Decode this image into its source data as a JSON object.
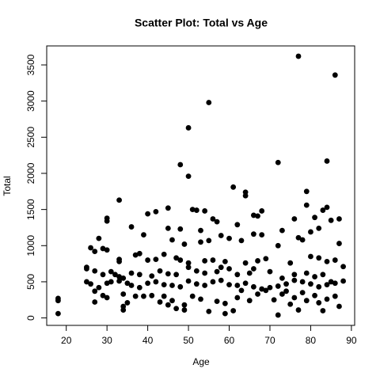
{
  "chart_data": {
    "type": "scatter",
    "title": "Scatter Plot: Total vs Age",
    "x_label": "Age",
    "y_label": "Total",
    "color": "#000000",
    "xlim": [
      15.2,
      90.8
    ],
    "ylim": [
      -103,
      3763
    ],
    "xticks": [
      20,
      30,
      40,
      50,
      60,
      70,
      80,
      90
    ],
    "yticks": [
      0,
      500,
      1000,
      1500,
      2000,
      2500,
      3000,
      3500
    ],
    "x": [
      77,
      86,
      55,
      50,
      84,
      72,
      48,
      50,
      61,
      79,
      64,
      64,
      33,
      79,
      45,
      51,
      52,
      54,
      83,
      84,
      68,
      42,
      40,
      66,
      67,
      30,
      30,
      56,
      57,
      85,
      87,
      76,
      81,
      62,
      36,
      45,
      48,
      73,
      53,
      80,
      82,
      58,
      68,
      66,
      39,
      28,
      77,
      78,
      60,
      55,
      63,
      53,
      46,
      72,
      49,
      87,
      26,
      29,
      30,
      27,
      33,
      33,
      37,
      38,
      44,
      47,
      40,
      42,
      48,
      50,
      54,
      56,
      59,
      64,
      67,
      69,
      75,
      80,
      82,
      84,
      86,
      88,
      25,
      25,
      27,
      29,
      31,
      32,
      33,
      34,
      36,
      38,
      41,
      43,
      45,
      47,
      50,
      52,
      54,
      57,
      58,
      60,
      62,
      65,
      66,
      70,
      73,
      76,
      79,
      81,
      83,
      85,
      25,
      26,
      28,
      30,
      31,
      33,
      35,
      36,
      38,
      40,
      42,
      44,
      46,
      48,
      50,
      52,
      54,
      56,
      58,
      60,
      62,
      64,
      66,
      68,
      70,
      72,
      74,
      76,
      78,
      80,
      82,
      84,
      86,
      88,
      18,
      18,
      18,
      27,
      27,
      29,
      30,
      34,
      34,
      35,
      34,
      37,
      39,
      41,
      43,
      44,
      45,
      46,
      47,
      49,
      49,
      51,
      53,
      55,
      57,
      59,
      59,
      61,
      62,
      63,
      65,
      67,
      69,
      71,
      72,
      73,
      74,
      75,
      76,
      77,
      78,
      79,
      81,
      82,
      83,
      84,
      86,
      87
    ],
    "y": [
      3620,
      3360,
      2980,
      2630,
      2170,
      2150,
      2120,
      1960,
      1810,
      1750,
      1740,
      1690,
      1630,
      1560,
      1520,
      1500,
      1490,
      1480,
      1490,
      1530,
      1480,
      1470,
      1440,
      1420,
      1410,
      1380,
      1340,
      1370,
      1330,
      1350,
      1370,
      1370,
      1390,
      1290,
      1260,
      1240,
      1230,
      1210,
      1210,
      1190,
      1240,
      1140,
      1150,
      1160,
      1150,
      1100,
      1110,
      1080,
      1100,
      1070,
      1070,
      1050,
      1080,
      1000,
      1020,
      1030,
      970,
      960,
      940,
      920,
      810,
      780,
      870,
      890,
      880,
      830,
      800,
      810,
      800,
      760,
      790,
      800,
      780,
      760,
      790,
      820,
      760,
      850,
      830,
      780,
      800,
      710,
      700,
      680,
      650,
      600,
      640,
      600,
      570,
      550,
      620,
      600,
      580,
      650,
      610,
      600,
      700,
      650,
      620,
      640,
      700,
      680,
      600,
      620,
      680,
      640,
      550,
      600,
      620,
      570,
      600,
      500,
      500,
      470,
      420,
      480,
      500,
      510,
      480,
      450,
      420,
      480,
      500,
      460,
      450,
      430,
      510,
      470,
      450,
      500,
      520,
      460,
      450,
      480,
      430,
      400,
      420,
      440,
      470,
      520,
      500,
      470,
      430,
      460,
      480,
      510,
      270,
      240,
      60,
      370,
      220,
      310,
      280,
      330,
      160,
      210,
      110,
      300,
      300,
      310,
      220,
      300,
      180,
      240,
      130,
      180,
      110,
      300,
      260,
      90,
      230,
      200,
      60,
      100,
      280,
      380,
      240,
      330,
      380,
      250,
      40,
      330,
      370,
      190,
      280,
      110,
      350,
      240,
      310,
      210,
      100,
      260,
      300,
      160
    ]
  }
}
